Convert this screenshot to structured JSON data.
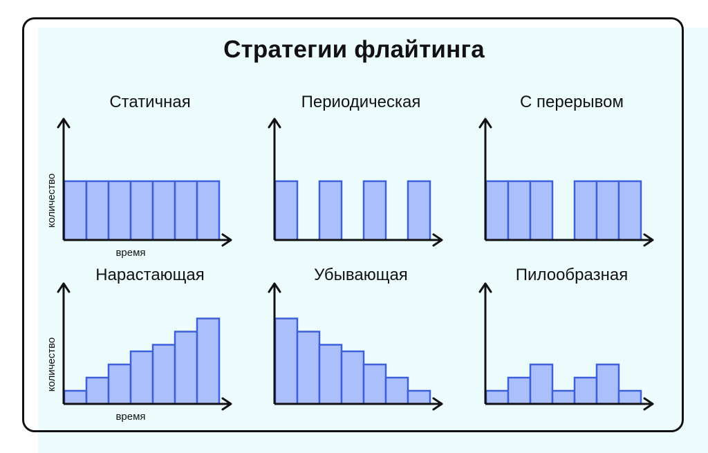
{
  "title": "Стратегии флайтинга",
  "colors": {
    "bar_fill": "#abc0fb",
    "bar_stroke": "#3d5fd8",
    "axis": "#111111",
    "panel": "#ecfcfd"
  },
  "charts": [
    {
      "title": "Статичная",
      "xlabel": "время",
      "ylabel": "количество",
      "values": [
        1,
        1,
        1,
        1,
        1,
        1,
        1
      ]
    },
    {
      "title": "Периодическая",
      "xlabel": "",
      "ylabel": "",
      "values": [
        1,
        0,
        1,
        0,
        1,
        0,
        1
      ]
    },
    {
      "title": "С перерывом",
      "xlabel": "",
      "ylabel": "",
      "values": [
        1,
        1,
        1,
        0,
        1,
        1,
        1
      ]
    },
    {
      "title": "Нарастающая",
      "xlabel": "время",
      "ylabel": "количество",
      "values": [
        1,
        2,
        3,
        4,
        4.5,
        5.5,
        6.5
      ]
    },
    {
      "title": "Убывающая",
      "xlabel": "",
      "ylabel": "",
      "values": [
        6.5,
        5.5,
        4.5,
        4,
        3,
        2,
        1
      ]
    },
    {
      "title": "Пилообразная",
      "xlabel": "",
      "ylabel": "",
      "values": [
        1,
        2,
        3,
        1,
        2,
        3,
        1
      ]
    }
  ]
}
